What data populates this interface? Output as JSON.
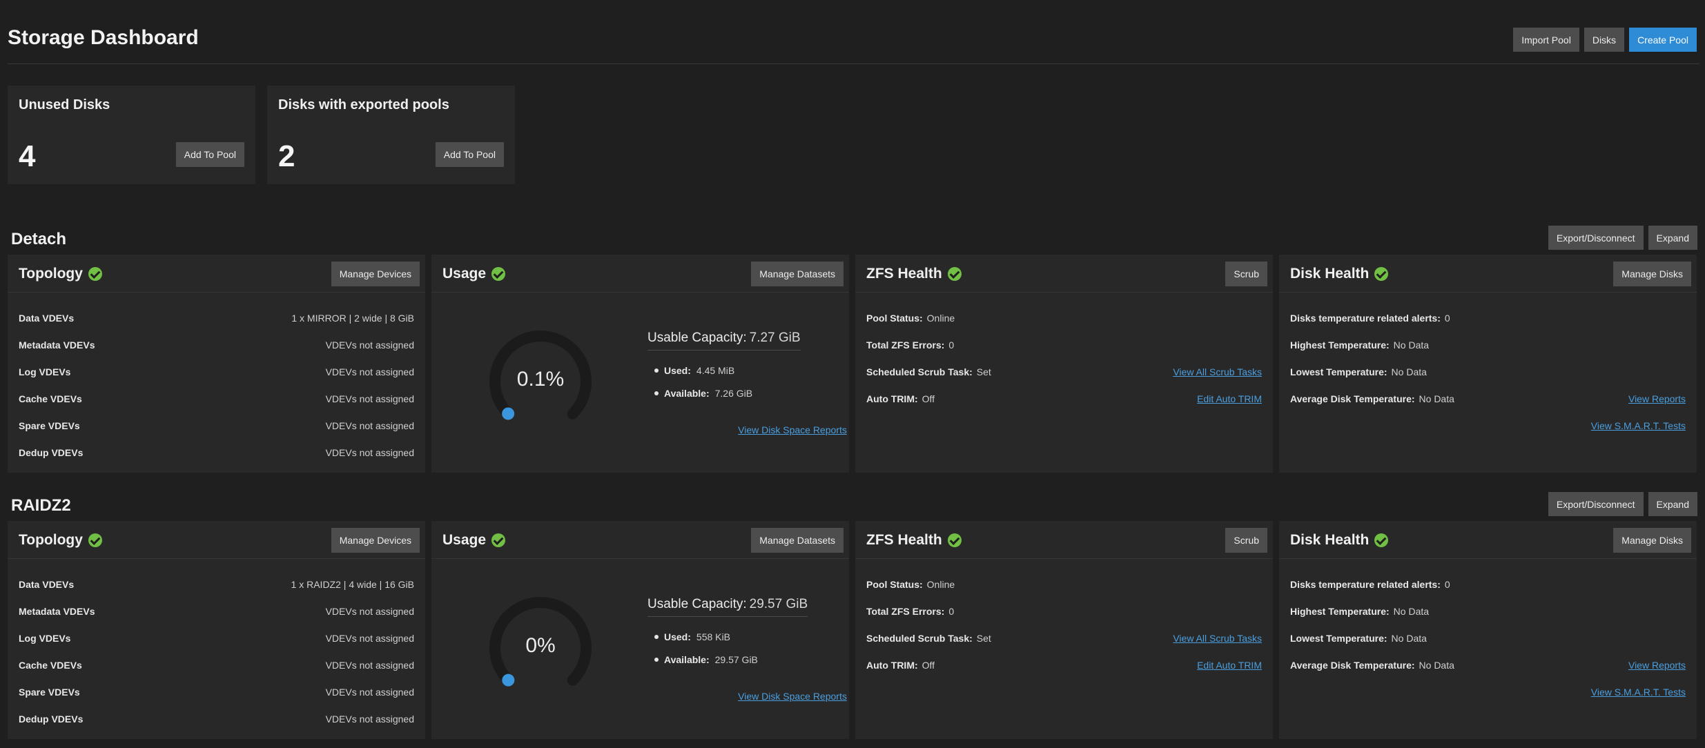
{
  "header": {
    "title": "Storage Dashboard",
    "import_pool": "Import Pool",
    "disks": "Disks",
    "create_pool": "Create Pool"
  },
  "summary": {
    "unused": {
      "title": "Unused Disks",
      "count": "4",
      "button": "Add To Pool"
    },
    "exported": {
      "title": "Disks with exported pools",
      "count": "2",
      "button": "Add To Pool"
    }
  },
  "colors": {
    "accent": "#2e8bd6",
    "ok": "#71bf44",
    "gauge_track": "#1b1b1b",
    "gauge_fill": "#3a96dd"
  },
  "pools": [
    {
      "name": "Detach",
      "export_btn": "Export/Disconnect",
      "expand_btn": "Expand",
      "topology": {
        "title": "Topology",
        "button": "Manage Devices",
        "rows": [
          {
            "label": "Data VDEVs",
            "value": "1 x MIRROR | 2 wide | 8 GiB"
          },
          {
            "label": "Metadata VDEVs",
            "value": "VDEVs not assigned"
          },
          {
            "label": "Log VDEVs",
            "value": "VDEVs not assigned"
          },
          {
            "label": "Cache VDEVs",
            "value": "VDEVs not assigned"
          },
          {
            "label": "Spare VDEVs",
            "value": "VDEVs not assigned"
          },
          {
            "label": "Dedup VDEVs",
            "value": "VDEVs not assigned"
          }
        ]
      },
      "usage": {
        "title": "Usage",
        "button": "Manage Datasets",
        "percent_label": "0.1%",
        "percent": 0.1,
        "capacity_label": "Usable Capacity:",
        "capacity_value": "7.27 GiB",
        "used_label": "Used:",
        "used_value": "4.45 MiB",
        "available_label": "Available:",
        "available_value": "7.26 GiB",
        "link": "View Disk Space Reports"
      },
      "zfs": {
        "title": "ZFS Health",
        "button": "Scrub",
        "pool_status_label": "Pool Status:",
        "pool_status": "Online",
        "errors_label": "Total ZFS Errors:",
        "errors": "0",
        "scrub_label": "Scheduled Scrub Task:",
        "scrub": "Set",
        "scrub_link": "View All Scrub Tasks",
        "trim_label": "Auto TRIM:",
        "trim": "Off",
        "trim_link": "Edit Auto TRIM"
      },
      "disk": {
        "title": "Disk Health",
        "button": "Manage Disks",
        "alerts_label": "Disks temperature related alerts:",
        "alerts": "0",
        "high_label": "Highest Temperature:",
        "high": "No Data",
        "low_label": "Lowest Temperature:",
        "low": "No Data",
        "avg_label": "Average Disk Temperature:",
        "avg": "No Data",
        "reports_link": "View Reports",
        "smart_link": "View S.M.A.R.T. Tests"
      }
    },
    {
      "name": "RAIDZ2",
      "export_btn": "Export/Disconnect",
      "expand_btn": "Expand",
      "topology": {
        "title": "Topology",
        "button": "Manage Devices",
        "rows": [
          {
            "label": "Data VDEVs",
            "value": "1 x RAIDZ2 | 4 wide | 16 GiB"
          },
          {
            "label": "Metadata VDEVs",
            "value": "VDEVs not assigned"
          },
          {
            "label": "Log VDEVs",
            "value": "VDEVs not assigned"
          },
          {
            "label": "Cache VDEVs",
            "value": "VDEVs not assigned"
          },
          {
            "label": "Spare VDEVs",
            "value": "VDEVs not assigned"
          },
          {
            "label": "Dedup VDEVs",
            "value": "VDEVs not assigned"
          }
        ]
      },
      "usage": {
        "title": "Usage",
        "button": "Manage Datasets",
        "percent_label": "0%",
        "percent": 0,
        "capacity_label": "Usable Capacity:",
        "capacity_value": "29.57 GiB",
        "used_label": "Used:",
        "used_value": "558 KiB",
        "available_label": "Available:",
        "available_value": "29.57 GiB",
        "link": "View Disk Space Reports"
      },
      "zfs": {
        "title": "ZFS Health",
        "button": "Scrub",
        "pool_status_label": "Pool Status:",
        "pool_status": "Online",
        "errors_label": "Total ZFS Errors:",
        "errors": "0",
        "scrub_label": "Scheduled Scrub Task:",
        "scrub": "Set",
        "scrub_link": "View All Scrub Tasks",
        "trim_label": "Auto TRIM:",
        "trim": "Off",
        "trim_link": "Edit Auto TRIM"
      },
      "disk": {
        "title": "Disk Health",
        "button": "Manage Disks",
        "alerts_label": "Disks temperature related alerts:",
        "alerts": "0",
        "high_label": "Highest Temperature:",
        "high": "No Data",
        "low_label": "Lowest Temperature:",
        "low": "No Data",
        "avg_label": "Average Disk Temperature:",
        "avg": "No Data",
        "reports_link": "View Reports",
        "smart_link": "View S.M.A.R.T. Tests"
      }
    }
  ]
}
